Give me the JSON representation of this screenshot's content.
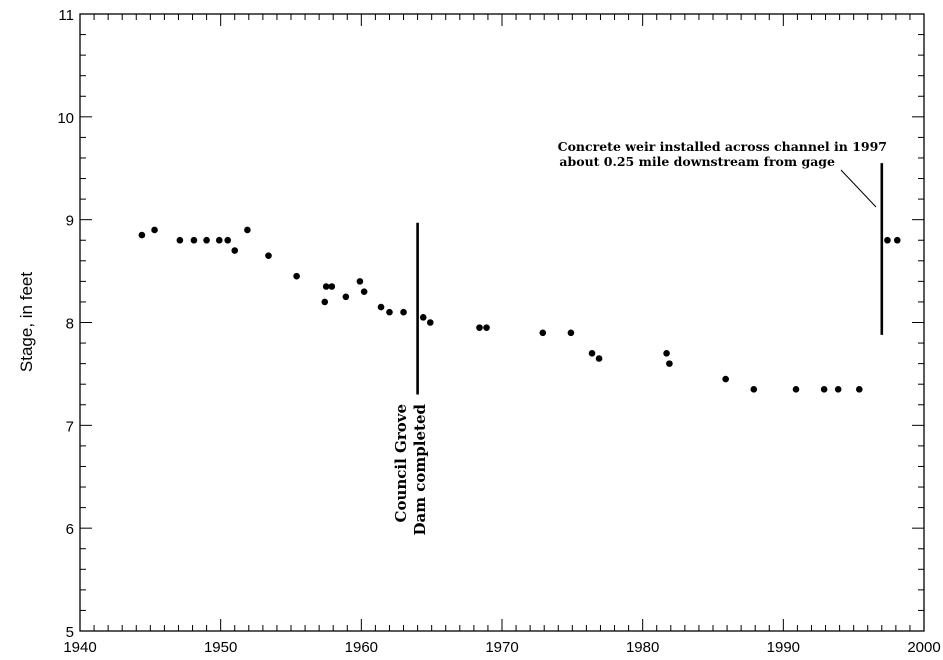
{
  "chart_data": {
    "type": "scatter",
    "title": "",
    "xlabel": "",
    "ylabel": "Stage, in feet",
    "xlim": [
      1940,
      2000
    ],
    "ylim": [
      5,
      11
    ],
    "x_major_ticks": [
      1940,
      1950,
      1960,
      1970,
      1980,
      1990,
      2000
    ],
    "x_tick_labels": [
      "1940",
      "1950",
      "1960",
      "1970",
      "1980",
      "1990",
      "2000"
    ],
    "y_major_ticks": [
      5,
      6,
      7,
      8,
      9,
      10,
      11
    ],
    "y_tick_labels": [
      "5",
      "6",
      "7",
      "8",
      "9",
      "10",
      "11"
    ],
    "x_minor_step": 1,
    "y_minor_step": 0.2,
    "grid": false,
    "legend": "none",
    "series": [
      {
        "points": [
          [
            1944.4,
            8.85
          ],
          [
            1945.3,
            8.9
          ],
          [
            1947.1,
            8.8
          ],
          [
            1948.1,
            8.8
          ],
          [
            1949.0,
            8.8
          ],
          [
            1949.9,
            8.8
          ],
          [
            1950.5,
            8.8
          ],
          [
            1951.0,
            8.7
          ],
          [
            1951.9,
            8.9
          ],
          [
            1953.4,
            8.65
          ],
          [
            1955.4,
            8.45
          ],
          [
            1957.4,
            8.2
          ],
          [
            1957.5,
            8.35
          ],
          [
            1957.9,
            8.35
          ],
          [
            1958.9,
            8.25
          ],
          [
            1959.9,
            8.4
          ],
          [
            1960.2,
            8.3
          ],
          [
            1961.4,
            8.15
          ],
          [
            1962.0,
            8.1
          ],
          [
            1963.0,
            8.1
          ],
          [
            1964.4,
            8.05
          ],
          [
            1964.9,
            8.0
          ],
          [
            1968.4,
            7.95
          ],
          [
            1968.9,
            7.95
          ],
          [
            1972.9,
            7.9
          ],
          [
            1974.9,
            7.9
          ],
          [
            1976.4,
            7.7
          ],
          [
            1976.9,
            7.65
          ],
          [
            1981.7,
            7.7
          ],
          [
            1981.9,
            7.6
          ],
          [
            1985.9,
            7.45
          ],
          [
            1987.9,
            7.35
          ],
          [
            1990.9,
            7.35
          ],
          [
            1992.9,
            7.35
          ],
          [
            1993.9,
            7.35
          ],
          [
            1995.4,
            7.35
          ],
          [
            1997.4,
            8.8
          ],
          [
            1998.1,
            8.8
          ]
        ]
      }
    ],
    "reference_lines": [
      {
        "x": 1964.0,
        "y_from": 7.3,
        "y_to": 8.97
      },
      {
        "x": 1997.0,
        "y_from": 7.88,
        "y_to": 9.55
      }
    ],
    "annotations": [
      {
        "lines": [
          "Council Grove",
          "Dam completed"
        ],
        "orientation": "vertical"
      },
      {
        "lines": [
          "Concrete weir installed across channel in 1997",
          "about 0.25 mile downstream from gage"
        ],
        "orientation": "horizontal"
      }
    ]
  }
}
